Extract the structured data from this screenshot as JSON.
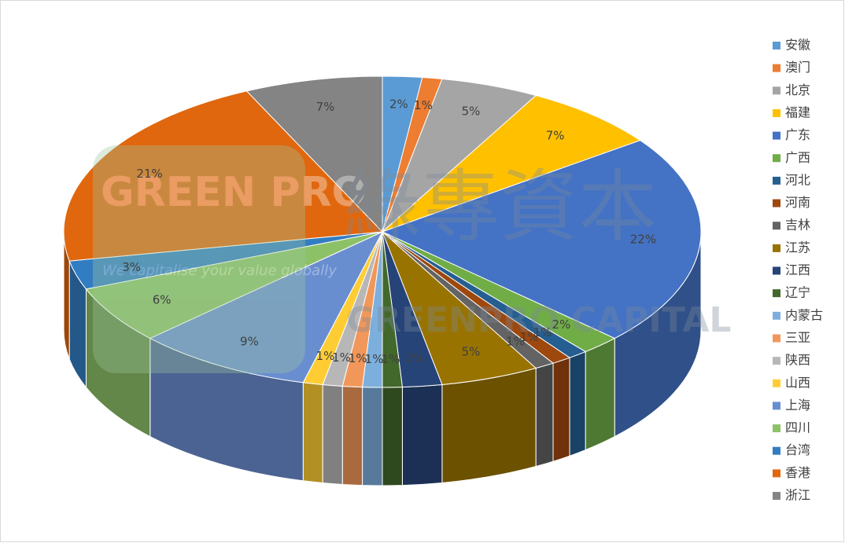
{
  "chart_data": {
    "type": "pie",
    "categories": [
      "安徽",
      "澳门",
      "北京",
      "福建",
      "广东",
      "广西",
      "河北",
      "河南",
      "吉林",
      "江苏",
      "江西",
      "辽宁",
      "内蒙古",
      "三亚",
      "陕西",
      "山西",
      "上海",
      "四川",
      "台湾",
      "香港",
      "浙江"
    ],
    "values": [
      2,
      1,
      5,
      7,
      22,
      2,
      1,
      1,
      1,
      5,
      2,
      1,
      1,
      1,
      1,
      1,
      9,
      6,
      3,
      21,
      7
    ],
    "value_labels": [
      "2%",
      "1%",
      "5%",
      "7%",
      "22%",
      "2%",
      "1%",
      "1%",
      "1%",
      "5%",
      "2%",
      "1%",
      "1%",
      "1%",
      "1%",
      "1%",
      "9%",
      "6%",
      "3%",
      "21%",
      "7%"
    ],
    "colors": [
      "#5B9BD5",
      "#ED7D31",
      "#A5A5A5",
      "#FFC000",
      "#4472C4",
      "#70AD47",
      "#255E91",
      "#9E480E",
      "#636363",
      "#997300",
      "#264478",
      "#43682B",
      "#7CAFDD",
      "#F1975A",
      "#B7B7B7",
      "#FFCD33",
      "#698ED0",
      "#8CC168",
      "#327DC2",
      "#E0670E",
      "#848484"
    ],
    "legend": "right",
    "watermark": {
      "logo": "GREEN PRO",
      "slogan": "We capitalise your value globally",
      "name_cn": "綠專資本",
      "name_en": "GREENPRO CAPITAL"
    }
  }
}
